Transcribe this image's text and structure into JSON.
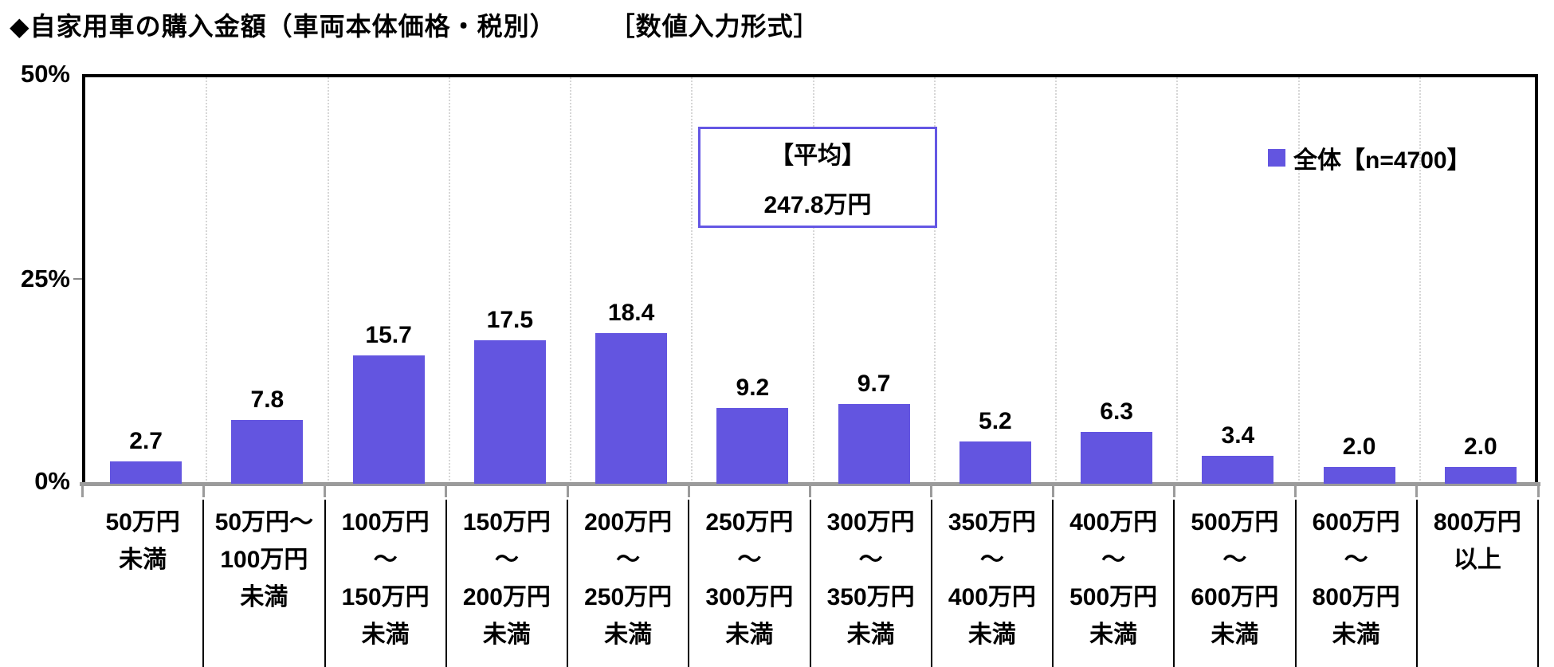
{
  "title": "◆自家用車の購入金額（車両本体価格・税別）　　　［数値入力形式］",
  "y_axis": {
    "tick_labels": [
      "50%",
      "25%",
      "0%"
    ]
  },
  "legend": {
    "label": "全体【n=4700】"
  },
  "average_box": {
    "label": "【平均】",
    "value": "247.8万円"
  },
  "colors": {
    "bar": "#6355e0",
    "legend_marker": "#6355e0",
    "average_box_border": "#6457e4",
    "axis_line": "#9b9b9b",
    "plot_border": "#000000",
    "gridline": "#d6d6d6"
  },
  "chart_data": {
    "type": "bar",
    "title": "自家用車の購入金額（車両本体価格・税別）",
    "series_name": "全体【n=4700】",
    "unit": "%",
    "categories": [
      "50万円未満",
      "50万円～100万円未満",
      "100万円～150万円未満",
      "150万円～200万円未満",
      "200万円～250万円未満",
      "250万円～300万円未満",
      "300万円～350万円未満",
      "350万円～400万円未満",
      "400万円～500万円未満",
      "500万円～600万円未満",
      "600万円～800万円未満",
      "800万円以上"
    ],
    "category_lines": [
      [
        "50万円",
        "未満"
      ],
      [
        "50万円～",
        "100万円",
        "未満"
      ],
      [
        "100万円",
        "～",
        "150万円",
        "未満"
      ],
      [
        "150万円",
        "～",
        "200万円",
        "未満"
      ],
      [
        "200万円",
        "～",
        "250万円",
        "未満"
      ],
      [
        "250万円",
        "～",
        "300万円",
        "未満"
      ],
      [
        "300万円",
        "～",
        "350万円",
        "未満"
      ],
      [
        "350万円",
        "～",
        "400万円",
        "未満"
      ],
      [
        "400万円",
        "～",
        "500万円",
        "未満"
      ],
      [
        "500万円",
        "～",
        "600万円",
        "未満"
      ],
      [
        "600万円",
        "～",
        "800万円",
        "未満"
      ],
      [
        "800万円",
        "以上"
      ]
    ],
    "values": [
      2.7,
      7.8,
      15.7,
      17.5,
      18.4,
      9.2,
      9.7,
      5.2,
      6.3,
      3.4,
      2.0,
      2.0
    ],
    "ylim": [
      0,
      50
    ],
    "yticks": [
      50,
      25,
      0
    ],
    "ytick_labels": [
      "50%",
      "25%",
      "0%"
    ],
    "grid": "vertical-dotted",
    "legend_position": "top-right",
    "average": {
      "label": "【平均】",
      "value": "247.8万円"
    }
  }
}
